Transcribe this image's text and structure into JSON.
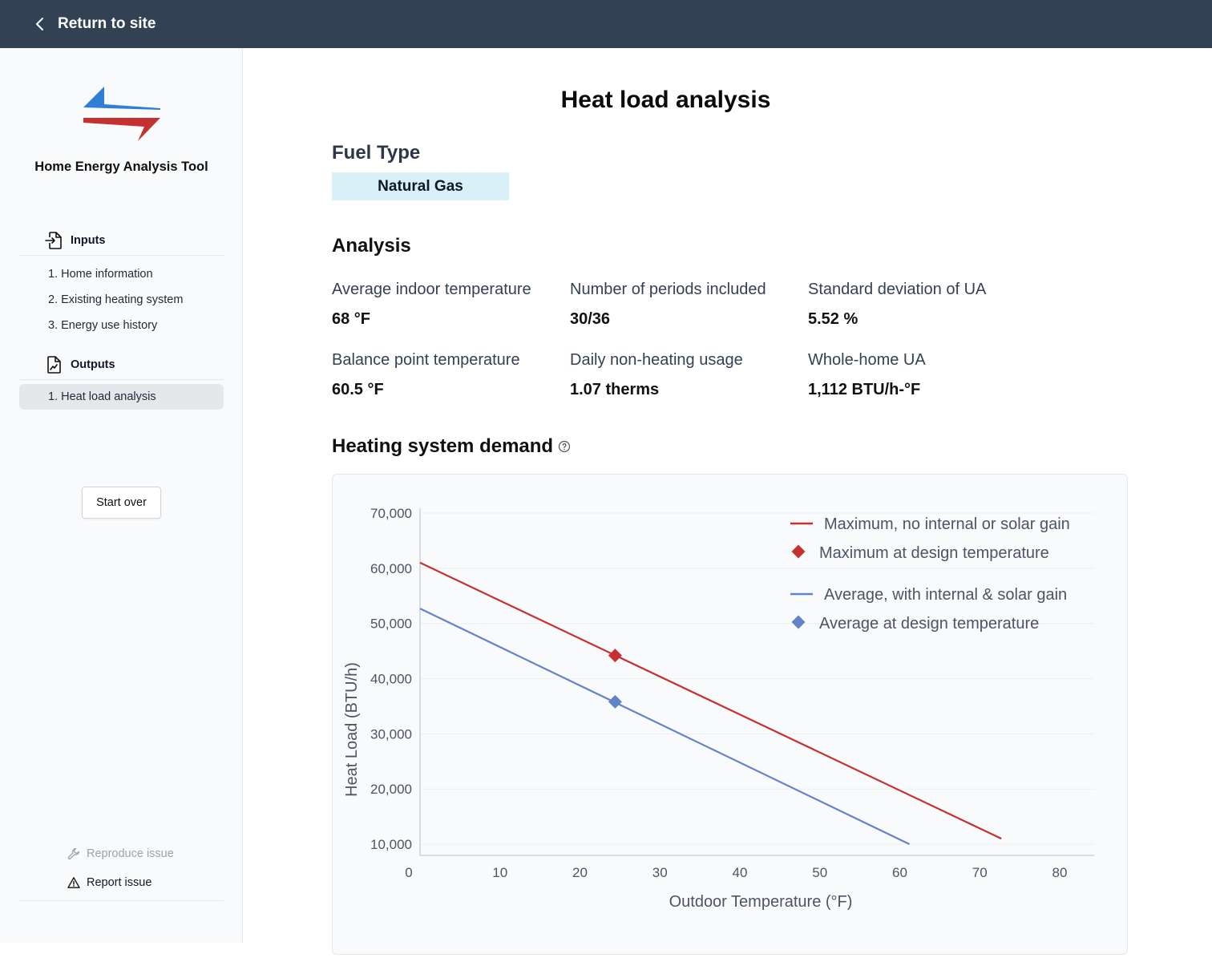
{
  "topbar": {
    "back_label": "Return to site"
  },
  "sidebar": {
    "brand": "Home Energy Analysis Tool",
    "inputs_label": "Inputs",
    "input_items": [
      "1. Home information",
      "2. Existing heating system",
      "3. Energy use history"
    ],
    "outputs_label": "Outputs",
    "output_items": [
      "1. Heat load analysis"
    ],
    "start_over": "Start over",
    "reproduce_issue": "Reproduce issue",
    "report_issue": "Report issue"
  },
  "main": {
    "title": "Heat load analysis",
    "fuel_type_heading": "Fuel Type",
    "fuel_type_value": "Natural Gas",
    "analysis_heading": "Analysis",
    "stats": [
      {
        "label": "Average indoor temperature",
        "value": "68 °F"
      },
      {
        "label": "Number of periods included",
        "value": "30/36"
      },
      {
        "label": "Standard deviation of UA",
        "value": "5.52 %"
      },
      {
        "label": "Balance point temperature",
        "value": "60.5 °F"
      },
      {
        "label": "Daily non-heating usage",
        "value": "1.07 therms"
      },
      {
        "label": "Whole-home UA",
        "value": "1,112 BTU/h-°F"
      }
    ],
    "demand_heading": "Heating system demand"
  },
  "chart_data": {
    "type": "line",
    "xlabel": "Outdoor Temperature (°F)",
    "ylabel": "Heat Load (BTU/h)",
    "xlim": [
      0,
      80
    ],
    "ylim": [
      10000,
      70000
    ],
    "x_ticks": [
      "0",
      "10",
      "20",
      "30",
      "40",
      "50",
      "60",
      "70",
      "80"
    ],
    "y_ticks": [
      "10,000",
      "20,000",
      "30,000",
      "40,000",
      "50,000",
      "60,000",
      "70,000"
    ],
    "series": [
      {
        "name": "Maximum, no internal or solar gain",
        "color": "#c53030",
        "x": [
          0,
          72.7
        ],
        "y": [
          61000,
          11000
        ]
      },
      {
        "name": "Average, with internal & solar gain",
        "color": "#6283c8",
        "x": [
          0,
          61.2
        ],
        "y": [
          52700,
          10000
        ]
      }
    ],
    "points": [
      {
        "name": "Maximum at design temperature",
        "color": "#c53030",
        "x": 24.4,
        "y": 44200
      },
      {
        "name": "Average at design temperature",
        "color": "#6283c8",
        "x": 24.4,
        "y": 35800
      }
    ]
  }
}
